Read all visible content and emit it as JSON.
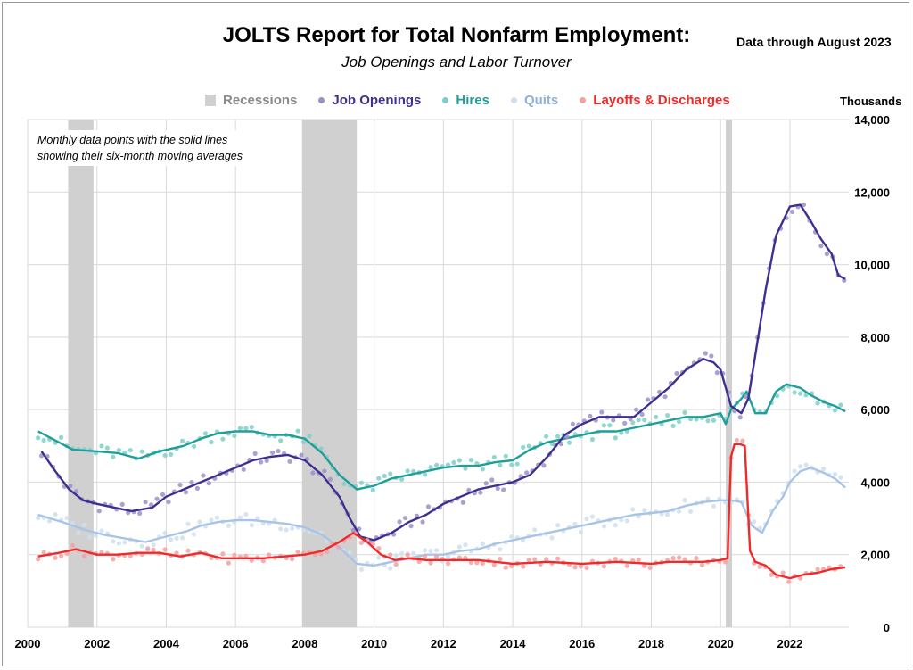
{
  "title": "JOLTS Report for Total Nonfarm Employment:",
  "subtitle": "Job Openings and Labor Turnover",
  "data_through": "Data through August 2023",
  "units_label": "Thousands",
  "annotation": {
    "line1": "Monthly data points with the solid lines",
    "line2": "showing their six-month moving averages"
  },
  "legend": {
    "recessions": "Recessions",
    "job_openings": "Job Openings",
    "hires": "Hires",
    "quits": "Quits",
    "layoffs": "Layoffs & Discharges"
  },
  "colors": {
    "recessions": "#d0d0d0",
    "job_openings": "#3f2f8f",
    "job_openings_dots": "#9a90c8",
    "hires": "#1f9e9a",
    "hires_dots": "#7fcfc8",
    "quits": "#a7c4e6",
    "quits_dots": "#cfdff0",
    "layoffs": "#ee2a2a",
    "layoffs_dots": "#f4a0a0",
    "grid": "#d9d9d9"
  },
  "chart_data": {
    "type": "line",
    "xlim": [
      2000,
      2023.7
    ],
    "ylim": [
      0,
      14000
    ],
    "x_ticks": [
      "2000",
      "2002",
      "2004",
      "2006",
      "2008",
      "2010",
      "2012",
      "2014",
      "2016",
      "2018",
      "2020",
      "2022"
    ],
    "y_ticks": [
      "0",
      "2,000",
      "4,000",
      "6,000",
      "8,000",
      "10,000",
      "12,000",
      "14,000"
    ],
    "recessions": [
      [
        2001.17,
        2001.9
      ],
      [
        2007.92,
        2009.5
      ],
      [
        2020.15,
        2020.33
      ]
    ],
    "series": [
      {
        "name": "Job Openings",
        "x": [
          2000.4,
          2000.8,
          2001.2,
          2001.6,
          2002.0,
          2002.5,
          2003.0,
          2003.6,
          2004.0,
          2004.5,
          2005.0,
          2005.5,
          2006.0,
          2006.5,
          2007.0,
          2007.5,
          2008.0,
          2008.5,
          2009.0,
          2009.3,
          2009.6,
          2010.0,
          2010.5,
          2011.0,
          2011.5,
          2012.0,
          2012.5,
          2013.0,
          2013.5,
          2014.0,
          2014.5,
          2015.0,
          2015.5,
          2016.0,
          2016.5,
          2017.0,
          2017.5,
          2018.0,
          2018.5,
          2019.0,
          2019.5,
          2019.8,
          2020.0,
          2020.3,
          2020.6,
          2020.8,
          2021.0,
          2021.3,
          2021.6,
          2022.0,
          2022.3,
          2022.6,
          2022.9,
          2023.2,
          2023.4,
          2023.6
        ],
        "y": [
          4850,
          4300,
          3800,
          3500,
          3400,
          3300,
          3200,
          3300,
          3600,
          3800,
          4000,
          4200,
          4400,
          4600,
          4700,
          4750,
          4600,
          4200,
          3600,
          3000,
          2500,
          2400,
          2600,
          2900,
          3100,
          3400,
          3600,
          3800,
          3900,
          4000,
          4200,
          4700,
          5300,
          5600,
          5800,
          5800,
          5800,
          6200,
          6600,
          7100,
          7400,
          7300,
          7100,
          6100,
          5900,
          6300,
          7500,
          9300,
          10800,
          11600,
          11650,
          11200,
          10700,
          10300,
          9700,
          9600
        ]
      },
      {
        "name": "Hires",
        "x": [
          2000.3,
          2000.8,
          2001.3,
          2002.0,
          2002.6,
          2003.2,
          2003.8,
          2004.5,
          2005.0,
          2005.5,
          2006.0,
          2006.5,
          2007.0,
          2007.5,
          2008.0,
          2008.5,
          2009.0,
          2009.5,
          2010.0,
          2010.5,
          2011.0,
          2011.5,
          2012.0,
          2012.5,
          2013.0,
          2013.5,
          2014.0,
          2014.5,
          2015.0,
          2015.5,
          2016.0,
          2016.5,
          2017.0,
          2017.5,
          2018.0,
          2018.5,
          2019.0,
          2019.5,
          2020.0,
          2020.15,
          2020.3,
          2020.6,
          2020.75,
          2021.0,
          2021.3,
          2021.6,
          2021.9,
          2022.3,
          2022.6,
          2023.0,
          2023.3,
          2023.6
        ],
        "y": [
          5400,
          5150,
          4900,
          4850,
          4800,
          4650,
          4850,
          5000,
          5200,
          5350,
          5400,
          5400,
          5300,
          5300,
          5200,
          4800,
          4200,
          3800,
          3900,
          4100,
          4200,
          4300,
          4400,
          4450,
          4450,
          4550,
          4600,
          4900,
          5100,
          5200,
          5300,
          5400,
          5400,
          5500,
          5600,
          5700,
          5800,
          5800,
          5900,
          5600,
          6000,
          6300,
          6500,
          5900,
          5900,
          6500,
          6700,
          6600,
          6400,
          6200,
          6100,
          5950
        ]
      },
      {
        "name": "Quits",
        "x": [
          2000.3,
          2001.0,
          2001.6,
          2002.2,
          2002.8,
          2003.4,
          2004.0,
          2004.6,
          2005.0,
          2005.5,
          2006.0,
          2006.5,
          2007.0,
          2007.5,
          2008.0,
          2008.5,
          2009.0,
          2009.5,
          2010.0,
          2010.5,
          2011.0,
          2011.5,
          2012.0,
          2012.5,
          2013.0,
          2013.5,
          2014.0,
          2014.5,
          2015.0,
          2015.5,
          2016.0,
          2016.5,
          2017.0,
          2017.5,
          2018.0,
          2018.5,
          2019.0,
          2019.5,
          2020.0,
          2020.3,
          2020.6,
          2020.9,
          2021.2,
          2021.5,
          2021.8,
          2022.0,
          2022.3,
          2022.6,
          2023.0,
          2023.3,
          2023.6
        ],
        "y": [
          3100,
          2900,
          2700,
          2550,
          2450,
          2350,
          2500,
          2650,
          2800,
          2900,
          2950,
          2950,
          2900,
          2850,
          2750,
          2550,
          2200,
          1750,
          1700,
          1800,
          1900,
          2000,
          2000,
          2100,
          2150,
          2300,
          2400,
          2500,
          2600,
          2700,
          2800,
          2900,
          3000,
          3100,
          3150,
          3200,
          3350,
          3450,
          3500,
          3500,
          3450,
          2800,
          2600,
          3200,
          3600,
          4000,
          4300,
          4400,
          4250,
          4100,
          3850
        ]
      },
      {
        "name": "Layoffs & Discharges",
        "x": [
          2000.3,
          2000.9,
          2001.4,
          2002.0,
          2002.6,
          2003.2,
          2003.8,
          2004.4,
          2005.0,
          2005.6,
          2006.2,
          2006.8,
          2007.4,
          2008.0,
          2008.5,
          2009.0,
          2009.4,
          2009.8,
          2010.2,
          2010.6,
          2011.0,
          2011.5,
          2012.0,
          2013.0,
          2014.0,
          2015.0,
          2016.0,
          2017.0,
          2018.0,
          2018.5,
          2019.0,
          2019.5,
          2020.0,
          2020.2,
          2020.3,
          2020.4,
          2020.55,
          2020.7,
          2020.85,
          2021.0,
          2021.3,
          2021.6,
          2022.0,
          2022.4,
          2022.8,
          2023.2,
          2023.6
        ],
        "y": [
          1950,
          2050,
          2150,
          2000,
          2000,
          2050,
          2050,
          1950,
          2050,
          1900,
          1900,
          1900,
          1950,
          2000,
          2100,
          2350,
          2600,
          2350,
          2000,
          1850,
          1900,
          1850,
          1850,
          1850,
          1750,
          1800,
          1750,
          1800,
          1750,
          1800,
          1800,
          1800,
          1850,
          1900,
          4700,
          5050,
          5050,
          5000,
          2100,
          1800,
          1700,
          1450,
          1350,
          1450,
          1500,
          1600,
          1650
        ]
      }
    ]
  }
}
